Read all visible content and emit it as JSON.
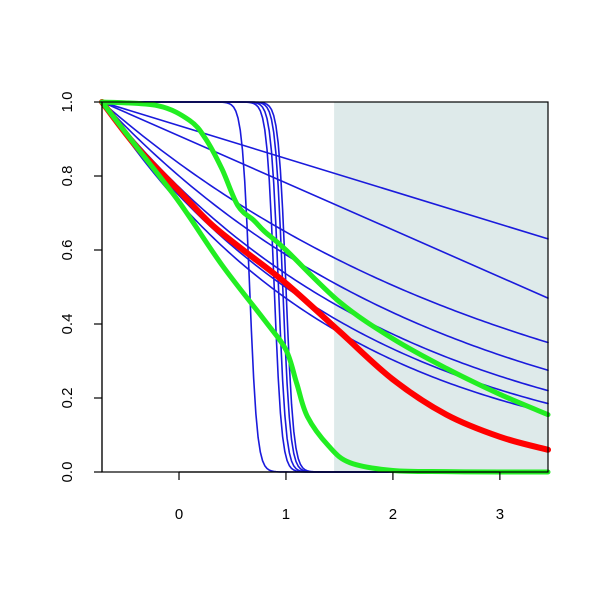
{
  "chart_data": {
    "type": "line",
    "title": "",
    "xlabel": "",
    "ylabel": "",
    "xlim": [
      -0.72,
      3.45
    ],
    "ylim": [
      0,
      1
    ],
    "x_ticks": [
      0,
      1,
      2,
      3
    ],
    "x_tick_labels": [
      "0",
      "1",
      "2",
      "3"
    ],
    "y_ticks": [
      0,
      0.2,
      0.4,
      0.6,
      0.8,
      1.0
    ],
    "y_tick_labels": [
      "0.0",
      "0.2",
      "0.4",
      "0.6",
      "0.8",
      "1.0"
    ],
    "grid": false,
    "legend": "none",
    "shaded_region": {
      "x_start": 1.45,
      "x_end": 3.45,
      "color": "#deeaea"
    },
    "colors": {
      "blue": "#1a1adc",
      "red": "#ff0000",
      "green": "#22ee22"
    },
    "series": [
      {
        "color": "#1a1adc",
        "kind": "linear",
        "y_end": 0.63
      },
      {
        "color": "#1a1adc",
        "kind": "linear",
        "y_end": 0.47
      },
      {
        "color": "#1a1adc",
        "kind": "decay",
        "y_end": 0.35
      },
      {
        "color": "#1a1adc",
        "kind": "decay",
        "y_end": 0.275
      },
      {
        "color": "#1a1adc",
        "kind": "decay",
        "y_end": 0.22
      },
      {
        "color": "#1a1adc",
        "kind": "decay",
        "y_end": 0.185
      },
      {
        "color": "#1a1adc",
        "kind": "decay",
        "y_end": 0.16
      },
      {
        "color": "#1a1adc",
        "kind": "step",
        "x_drop": 0.66
      },
      {
        "color": "#1a1adc",
        "kind": "step",
        "x_drop": 0.89
      },
      {
        "color": "#1a1adc",
        "kind": "step",
        "x_drop": 0.93
      },
      {
        "color": "#1a1adc",
        "kind": "step",
        "x_drop": 0.97
      },
      {
        "color": "#1a1adc",
        "kind": "step",
        "x_drop": 1.0
      },
      {
        "color": "#ff0000",
        "kind": "points",
        "width": 6,
        "x": [
          -0.72,
          -0.4,
          0,
          0.3,
          0.6,
          1.0,
          1.5,
          2.0,
          2.5,
          3.0,
          3.45
        ],
        "y": [
          1.0,
          0.88,
          0.76,
          0.67,
          0.6,
          0.51,
          0.38,
          0.25,
          0.155,
          0.095,
          0.06
        ]
      },
      {
        "color": "#22ee22",
        "kind": "points",
        "width": 5,
        "x": [
          -0.72,
          -0.2,
          0.1,
          0.25,
          0.4,
          0.55,
          0.7,
          0.8,
          1.0,
          1.5,
          2.0,
          2.5,
          3.0,
          3.45
        ],
        "y": [
          1.0,
          0.99,
          0.95,
          0.9,
          0.82,
          0.72,
          0.68,
          0.65,
          0.6,
          0.46,
          0.36,
          0.28,
          0.21,
          0.155
        ]
      },
      {
        "color": "#22ee22",
        "kind": "points",
        "width": 5,
        "x": [
          -0.72,
          -0.4,
          0,
          0.4,
          0.8,
          1.0,
          1.1,
          1.2,
          1.4,
          1.6,
          2.0,
          2.5,
          3.0,
          3.45
        ],
        "y": [
          1.0,
          0.88,
          0.73,
          0.56,
          0.41,
          0.33,
          0.24,
          0.15,
          0.07,
          0.025,
          0.004,
          0.001,
          0.0,
          0.0
        ]
      }
    ]
  }
}
